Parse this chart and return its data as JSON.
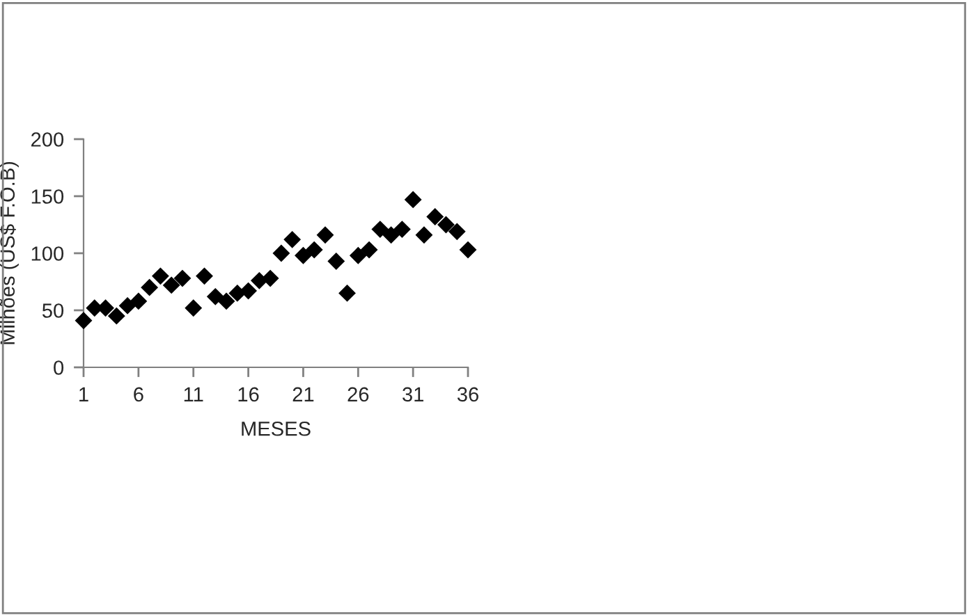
{
  "chart_data": {
    "type": "scatter",
    "xlabel": "MESES",
    "ylabel": "Milhões (US$ F.O.B)",
    "x": [
      1,
      2,
      3,
      4,
      5,
      6,
      7,
      8,
      9,
      10,
      11,
      12,
      13,
      14,
      15,
      16,
      17,
      18,
      19,
      20,
      21,
      22,
      23,
      24,
      25,
      26,
      27,
      28,
      29,
      30,
      31,
      32,
      33,
      34,
      35,
      36
    ],
    "series": [
      {
        "color": "#000000",
        "values": [
          41,
          52,
          52,
          45,
          54,
          58,
          70,
          80,
          72,
          78,
          52,
          80,
          62,
          58,
          65,
          67,
          76,
          78,
          100,
          112,
          98,
          103,
          116,
          93,
          65,
          98,
          103,
          121,
          116,
          121,
          147,
          116,
          132,
          125,
          119,
          103
        ]
      }
    ],
    "xlim": [
      1,
      36
    ],
    "xticks": [
      1,
      6,
      11,
      16,
      21,
      26,
      31,
      36
    ],
    "ylim": [
      0,
      200
    ],
    "yticks": [
      0,
      50,
      100,
      150,
      200
    ],
    "marker": "diamond",
    "grid": false,
    "legend": false
  }
}
